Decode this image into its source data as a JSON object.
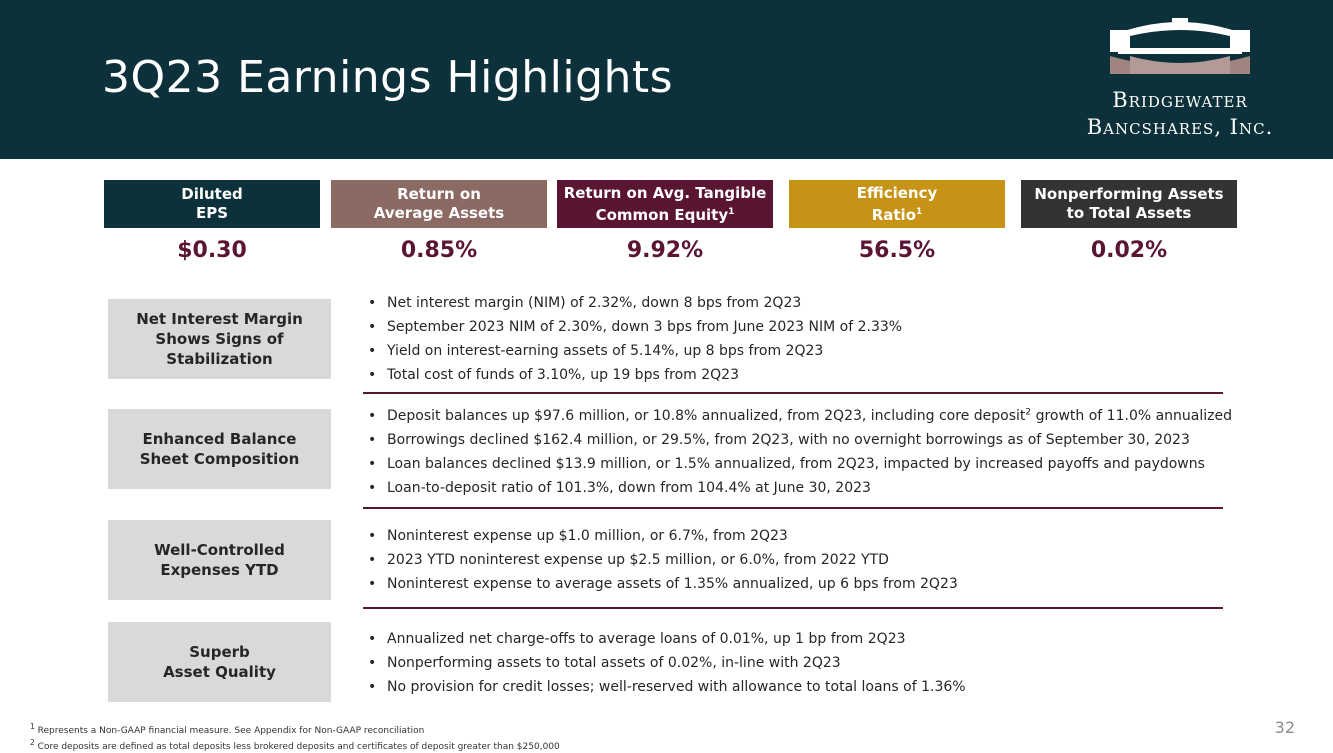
{
  "header": {
    "title": "3Q23 Earnings Highlights",
    "logo": {
      "line1": "Bridgewater",
      "line2": "Bancshares, Inc."
    }
  },
  "kpis": [
    {
      "label": "Diluted EPS",
      "label_lines": [
        "Diluted",
        "EPS"
      ],
      "footnote": "",
      "value": "$0.30",
      "color": "#0c313a"
    },
    {
      "label": "Return on Average Assets",
      "label_lines": [
        "Return on",
        "Average Assets"
      ],
      "footnote": "",
      "value": "0.85%",
      "color": "#8a6a63"
    },
    {
      "label": "Return on Avg. Tangible Common Equity",
      "label_lines": [
        "Return on Avg. Tangible",
        "Common Equity"
      ],
      "footnote": "1",
      "value": "9.92%",
      "color": "#5a1533"
    },
    {
      "label": "Efficiency Ratio",
      "label_lines": [
        "Efficiency",
        "Ratio"
      ],
      "footnote": "1",
      "value": "56.5%",
      "color": "#c79317"
    },
    {
      "label": "Nonperforming Assets to Total Assets",
      "label_lines": [
        "Nonperforming Assets",
        "to Total Assets"
      ],
      "footnote": "",
      "value": "0.02%",
      "color": "#333333"
    }
  ],
  "sections": [
    {
      "category": "Net Interest Margin Shows Signs of Stabilization",
      "category_lines": [
        "Net Interest Margin",
        "Shows Signs of",
        "Stabilization"
      ],
      "bullets": [
        {
          "text": "Net interest margin (NIM) of 2.32%, down 8 bps from 2Q23"
        },
        {
          "text": "September 2023 NIM of 2.30%, down 3 bps from June 2023 NIM of 2.33%"
        },
        {
          "text": "Yield on interest-earning assets of 5.14%, up 8 bps from 2Q23"
        },
        {
          "text": "Total cost of funds of 3.10%, up 19 bps from 2Q23"
        }
      ]
    },
    {
      "category": "Enhanced Balance Sheet Composition",
      "category_lines": [
        "Enhanced Balance",
        "Sheet Composition"
      ],
      "bullets": [
        {
          "text": "Deposit balances up $97.6 million, or 10.8% annualized, from 2Q23, including core deposit",
          "sup": "2",
          "text_after": " growth of 11.0% annualized"
        },
        {
          "text": "Borrowings declined $162.4 million, or 29.5%, from 2Q23, with no overnight borrowings as of September 30, 2023"
        },
        {
          "text": "Loan balances declined $13.9 million, or 1.5% annualized, from 2Q23, impacted by increased payoffs and paydowns"
        },
        {
          "text": "Loan-to-deposit ratio of 101.3%, down from 104.4% at June 30, 2023"
        }
      ]
    },
    {
      "category": "Well-Controlled Expenses YTD",
      "category_lines": [
        "Well-Controlled",
        "Expenses YTD"
      ],
      "bullets": [
        {
          "text": "Noninterest expense up $1.0 million, or 6.7%, from 2Q23"
        },
        {
          "text": "2023 YTD noninterest expense up $2.5 million, or 6.0%, from 2022 YTD"
        },
        {
          "text": "Noninterest expense to average assets of 1.35% annualized, up 6 bps from 2Q23"
        }
      ]
    },
    {
      "category": "Superb Asset Quality",
      "category_lines": [
        "Superb",
        "Asset Quality"
      ],
      "bullets": [
        {
          "text": "Annualized net charge-offs to average loans of 0.01%, up 1 bp from 2Q23"
        },
        {
          "text": "Nonperforming assets to total assets of 0.02%, in-line with 2Q23"
        },
        {
          "text": "No provision for credit losses; well-reserved with allowance to total loans of 1.36%"
        }
      ]
    }
  ],
  "footnotes": [
    {
      "sup": "1",
      "text": "Represents a Non-GAAP financial measure. See Appendix for Non-GAAP reconciliation"
    },
    {
      "sup": "2",
      "text": "Core deposits are defined as total deposits less brokered deposits and certificates of deposit greater than $250,000"
    }
  ],
  "page_number": "32",
  "colors": {
    "header_bg": "#0c313a",
    "accent": "#5a1533",
    "category_bg": "#d9d9d9"
  }
}
